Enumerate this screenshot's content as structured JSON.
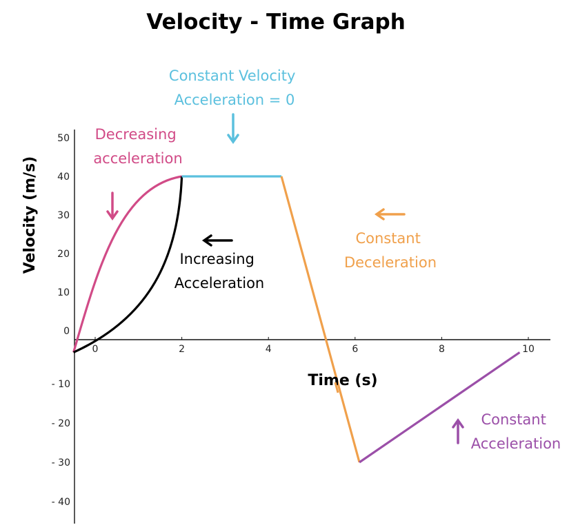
{
  "title": "Velocity  - Time Graph",
  "chart_data": {
    "type": "line",
    "xlabel": "Time (s)",
    "ylabel": "Velocity (m/s)",
    "xlim": [
      -0.5,
      10.5
    ],
    "ylim": [
      -48,
      52
    ],
    "x_ticks": [
      "0",
      "2",
      "4",
      "6",
      "8",
      "10"
    ],
    "x_tick_values": [
      0,
      2,
      4,
      6,
      8,
      10
    ],
    "y_ticks_positive": [
      "0",
      "10",
      "20",
      "30",
      "40",
      "50"
    ],
    "y_ticks_positive_values": [
      0,
      10,
      20,
      30,
      40,
      50
    ],
    "y_ticks_negative": [
      "- 10",
      "- 20",
      "- 30",
      "- 40"
    ],
    "y_ticks_negative_values": [
      -10,
      -20,
      -30,
      -40
    ],
    "series": [
      {
        "name": "decreasing-acceleration",
        "color": "#d14b87",
        "shape": "concave",
        "x": [
          -0.5,
          2
        ],
        "y": [
          -2,
          40
        ]
      },
      {
        "name": "increasing-acceleration",
        "color": "#000000",
        "shape": "convex",
        "x": [
          -0.5,
          2
        ],
        "y": [
          -2,
          40
        ]
      },
      {
        "name": "constant-velocity",
        "color": "#5bc0de",
        "x": [
          2,
          4.3
        ],
        "y": [
          40,
          40
        ]
      },
      {
        "name": "constant-deceleration",
        "color": "#f0a04b",
        "x": [
          4.3,
          6.1
        ],
        "y": [
          40,
          -30
        ]
      },
      {
        "name": "constant-acceleration",
        "color": "#9b4fa8",
        "x": [
          6.1,
          9.8
        ],
        "y": [
          -30,
          -2
        ]
      }
    ]
  },
  "annotations": {
    "constant_velocity": {
      "line1": "Constant Velocity",
      "line2": "Acceleration = 0",
      "color": "#5bc0de"
    },
    "decreasing_acceleration": {
      "line1": "Decreasing",
      "line2": "acceleration",
      "color": "#d14b87"
    },
    "increasing_acceleration": {
      "line1": "Increasing",
      "line2": "Acceleration",
      "color": "#000000"
    },
    "constant_deceleration": {
      "line1": "Constant",
      "line2": "Deceleration",
      "color": "#f0a04b"
    },
    "constant_acceleration": {
      "line1": "Constant",
      "line2": "Acceleration",
      "color": "#9b4fa8"
    }
  }
}
